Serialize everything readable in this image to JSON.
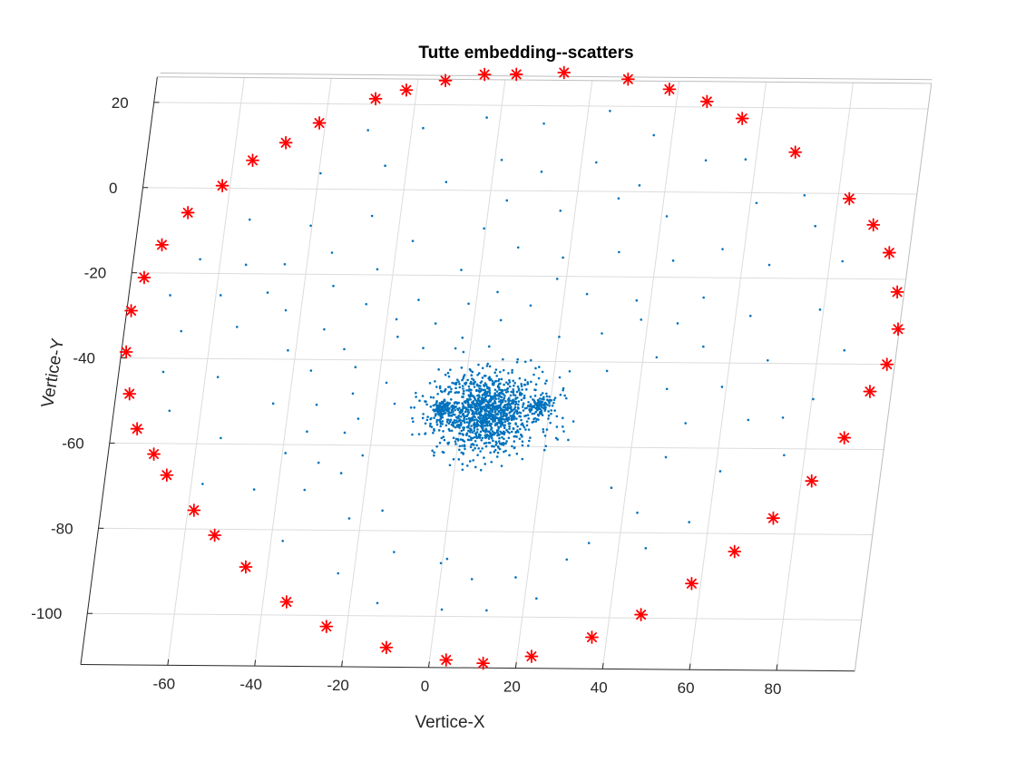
{
  "chart_data": {
    "type": "scatter",
    "title": "Tutte embedding--scatters",
    "xlabel": "Vertice-X",
    "ylabel": "Vertice-Y",
    "xlim": [
      -80,
      98
    ],
    "ylim": [
      -112,
      26
    ],
    "xticks": [
      -60,
      -40,
      -20,
      0,
      20,
      40,
      60,
      80
    ],
    "yticks": [
      -100,
      -80,
      -60,
      -40,
      -20,
      0,
      20
    ],
    "xtick_labels": [
      "-60",
      "-40",
      "-20",
      "0",
      "20",
      "40",
      "60",
      "80"
    ],
    "ytick_labels": [
      "-100",
      "-80",
      "-60",
      "-40",
      "-20",
      "0",
      "20"
    ],
    "grid": true,
    "legend": "none",
    "series": [
      {
        "marker": "star",
        "color": "#ff0000",
        "role": "boundary vertices",
        "points": [
          [
            -4.9,
            27.2
          ],
          [
            2.4,
            27.3
          ],
          [
            13.3,
            27.8
          ],
          [
            28.2,
            26.4
          ],
          [
            38.0,
            24.1
          ],
          [
            47.0,
            21.3
          ],
          [
            55.6,
            17.4
          ],
          [
            68.8,
            9.6
          ],
          [
            82.6,
            -1.2
          ],
          [
            88.9,
            -7.3
          ],
          [
            93.4,
            -13.8
          ],
          [
            96.4,
            -23.0
          ],
          [
            97.7,
            -31.7
          ],
          [
            96.2,
            -40.0
          ],
          [
            93.1,
            -46.4
          ],
          [
            88.6,
            -57.3
          ],
          [
            82.4,
            -67.5
          ],
          [
            74.7,
            -76.3
          ],
          [
            66.8,
            -84.2
          ],
          [
            57.9,
            -91.8
          ],
          [
            47.2,
            -99.2
          ],
          [
            36.6,
            -104.6
          ],
          [
            23.3,
            -109.2
          ],
          [
            12.4,
            -110.9
          ],
          [
            3.8,
            -110.2
          ],
          [
            -10.3,
            -107.4
          ],
          [
            -24.7,
            -102.6
          ],
          [
            -34.6,
            -96.9
          ],
          [
            -45.0,
            -88.8
          ],
          [
            -53.1,
            -81.4
          ],
          [
            -58.6,
            -75.6
          ],
          [
            -65.9,
            -67.4
          ],
          [
            -69.5,
            -62.5
          ],
          [
            -74.1,
            -56.6
          ],
          [
            -76.9,
            -48.4
          ],
          [
            -78.9,
            -38.6
          ],
          [
            -79.0,
            -28.9
          ],
          [
            -77.0,
            -21.1
          ],
          [
            -73.9,
            -13.4
          ],
          [
            -68.9,
            -5.8
          ],
          [
            -61.8,
            0.6
          ],
          [
            -55.6,
            6.6
          ],
          [
            -48.5,
            10.8
          ],
          [
            -41.4,
            15.5
          ],
          [
            -29.2,
            21.3
          ],
          [
            -22.4,
            23.4
          ],
          [
            -13.7,
            25.7
          ]
        ]
      },
      {
        "marker": "dot",
        "color": "#0072bd",
        "role": "interior vertices",
        "points": [
          [
            -3.1,
            17.1
          ],
          [
            10.2,
            15.8
          ],
          [
            25.0,
            18.9
          ],
          [
            35.8,
            13.3
          ],
          [
            -17.4,
            14.5
          ],
          [
            -30.0,
            13.9
          ],
          [
            48.5,
            7.5
          ],
          [
            57.6,
            7.8
          ],
          [
            1.6,
            7.2
          ],
          [
            11.1,
            4.5
          ],
          [
            23.4,
            6.8
          ],
          [
            -25.0,
            5.6
          ],
          [
            -39.6,
            3.7
          ],
          [
            -10.5,
            1.9
          ],
          [
            34.0,
            1.5
          ],
          [
            72.2,
            -0.5
          ],
          [
            61.4,
            -2.4
          ],
          [
            29.6,
            -1.6
          ],
          [
            16.6,
            -4.6
          ],
          [
            4.0,
            -2.3
          ],
          [
            -26.5,
            -6.2
          ],
          [
            -54.5,
            -7.3
          ],
          [
            41.2,
            -5.7
          ],
          [
            75.6,
            -7.7
          ],
          [
            -40.3,
            -8.6
          ],
          [
            -16.4,
            -12.0
          ],
          [
            -0.4,
            -8.9
          ],
          [
            8.0,
            -13.3
          ],
          [
            -34.6,
            -14.9
          ],
          [
            55.0,
            -13.3
          ],
          [
            -64.7,
            -16.7
          ],
          [
            31.3,
            -14.2
          ],
          [
            18.6,
            -15.6
          ],
          [
            -45.1,
            -17.7
          ],
          [
            -54.0,
            -17.9
          ],
          [
            44.0,
            -16.1
          ],
          [
            66.2,
            -16.9
          ],
          [
            82.9,
            -15.9
          ],
          [
            -23.7,
            -18.7
          ],
          [
            -4.4,
            -18.7
          ],
          [
            -48.2,
            -24.4
          ],
          [
            4.6,
            -23.8
          ],
          [
            17.9,
            -20.6
          ],
          [
            -13.3,
            -25.8
          ],
          [
            -58.9,
            -25.1
          ],
          [
            52.1,
            -24.7
          ],
          [
            36.8,
            -25.5
          ],
          [
            25.2,
            -24.1
          ],
          [
            -70.5,
            -25.2
          ],
          [
            -33.3,
            -22.7
          ],
          [
            -25.2,
            -26.9
          ],
          [
            -43.5,
            -28.5
          ],
          [
            -1.7,
            -26.6
          ],
          [
            12.6,
            -26.9
          ],
          [
            -17.8,
            -30.4
          ],
          [
            6.2,
            -30.4
          ],
          [
            63.4,
            -28.9
          ],
          [
            79.2,
            -27.3
          ],
          [
            38.4,
            -30.0
          ],
          [
            46.9,
            -30.8
          ],
          [
            -54.2,
            -32.5
          ],
          [
            -34.1,
            -32.9
          ],
          [
            -8.7,
            -31.3
          ],
          [
            -66.9,
            -33.6
          ],
          [
            -17.0,
            -34.5
          ],
          [
            29.8,
            -33.3
          ],
          [
            53.5,
            -36.2
          ],
          [
            -2.1,
            -34.6
          ],
          [
            4.3,
            -36.6
          ],
          [
            20.1,
            -34.2
          ],
          [
            -41.8,
            -37.9
          ],
          [
            -28.9,
            -37.5
          ],
          [
            -10.8,
            -37.1
          ],
          [
            68.7,
            -39.3
          ],
          [
            86.0,
            -36.8
          ],
          [
            43.1,
            -38.8
          ],
          [
            -25.8,
            -41.7
          ],
          [
            -35.9,
            -42.6
          ],
          [
            32.1,
            -42.1
          ],
          [
            -57.1,
            -44.3
          ],
          [
            -69.8,
            -43.2
          ],
          [
            -18.2,
            -45.3
          ],
          [
            -25.6,
            -47.9
          ],
          [
            46.4,
            -46.2
          ],
          [
            59.0,
            -45.6
          ],
          [
            80.3,
            -48.3
          ],
          [
            -43.6,
            -50.4
          ],
          [
            -15.7,
            -50.2
          ],
          [
            -33.6,
            -50.6
          ],
          [
            -23.6,
            -53.8
          ],
          [
            -26.3,
            -57.1
          ],
          [
            -35.0,
            -56.9
          ],
          [
            -54.6,
            -58.6
          ],
          [
            -67.2,
            -52.3
          ],
          [
            51.7,
            -54.2
          ],
          [
            73.9,
            -52.7
          ],
          [
            66.0,
            -53.3
          ],
          [
            -39.3,
            -62.0
          ],
          [
            -31.4,
            -64.2
          ],
          [
            48.2,
            -62.2
          ],
          [
            75.3,
            -61.5
          ],
          [
            -21.5,
            -62.4
          ],
          [
            -57.4,
            -69.4
          ],
          [
            -45.4,
            -70.6
          ],
          [
            -33.8,
            -70.6
          ],
          [
            -25.9,
            -66.6
          ],
          [
            36.6,
            -69.5
          ],
          [
            61.1,
            -65.4
          ],
          [
            -22.7,
            -77.2
          ],
          [
            -15.3,
            -75.3
          ],
          [
            55.5,
            -77.4
          ],
          [
            43.3,
            -75.3
          ],
          [
            -37.3,
            -82.6
          ],
          [
            46.3,
            -83.6
          ],
          [
            33.1,
            -82.5
          ],
          [
            -11.4,
            -85.0
          ],
          [
            -23.6,
            -90.1
          ],
          [
            1.0,
            -86.5
          ],
          [
            28.5,
            -86.4
          ],
          [
            7.3,
            -91.2
          ],
          [
            17.3,
            -90.7
          ],
          [
            -13.7,
            -97.0
          ],
          [
            1.3,
            -98.4
          ],
          [
            22.7,
            -95.6
          ],
          [
            11.6,
            -98.5
          ],
          [
            -0.3,
            -87.5
          ]
        ]
      }
    ],
    "dense_clusters": [
      {
        "center": [
          5.5,
          -52.0
        ],
        "rx": 9,
        "ry": 8,
        "count": 700
      },
      {
        "center": [
          -4.5,
          -51.5
        ],
        "rx": 2.4,
        "ry": 2.0,
        "count": 90
      },
      {
        "center": [
          17.5,
          -50.5
        ],
        "rx": 2.8,
        "ry": 2.0,
        "count": 90
      },
      {
        "center": [
          6.0,
          -52.0
        ],
        "rx": 14,
        "ry": 9.5,
        "count": 320
      },
      {
        "center": [
          6.0,
          -52.0
        ],
        "rx": 26,
        "ry": 20,
        "count": 160
      }
    ]
  }
}
